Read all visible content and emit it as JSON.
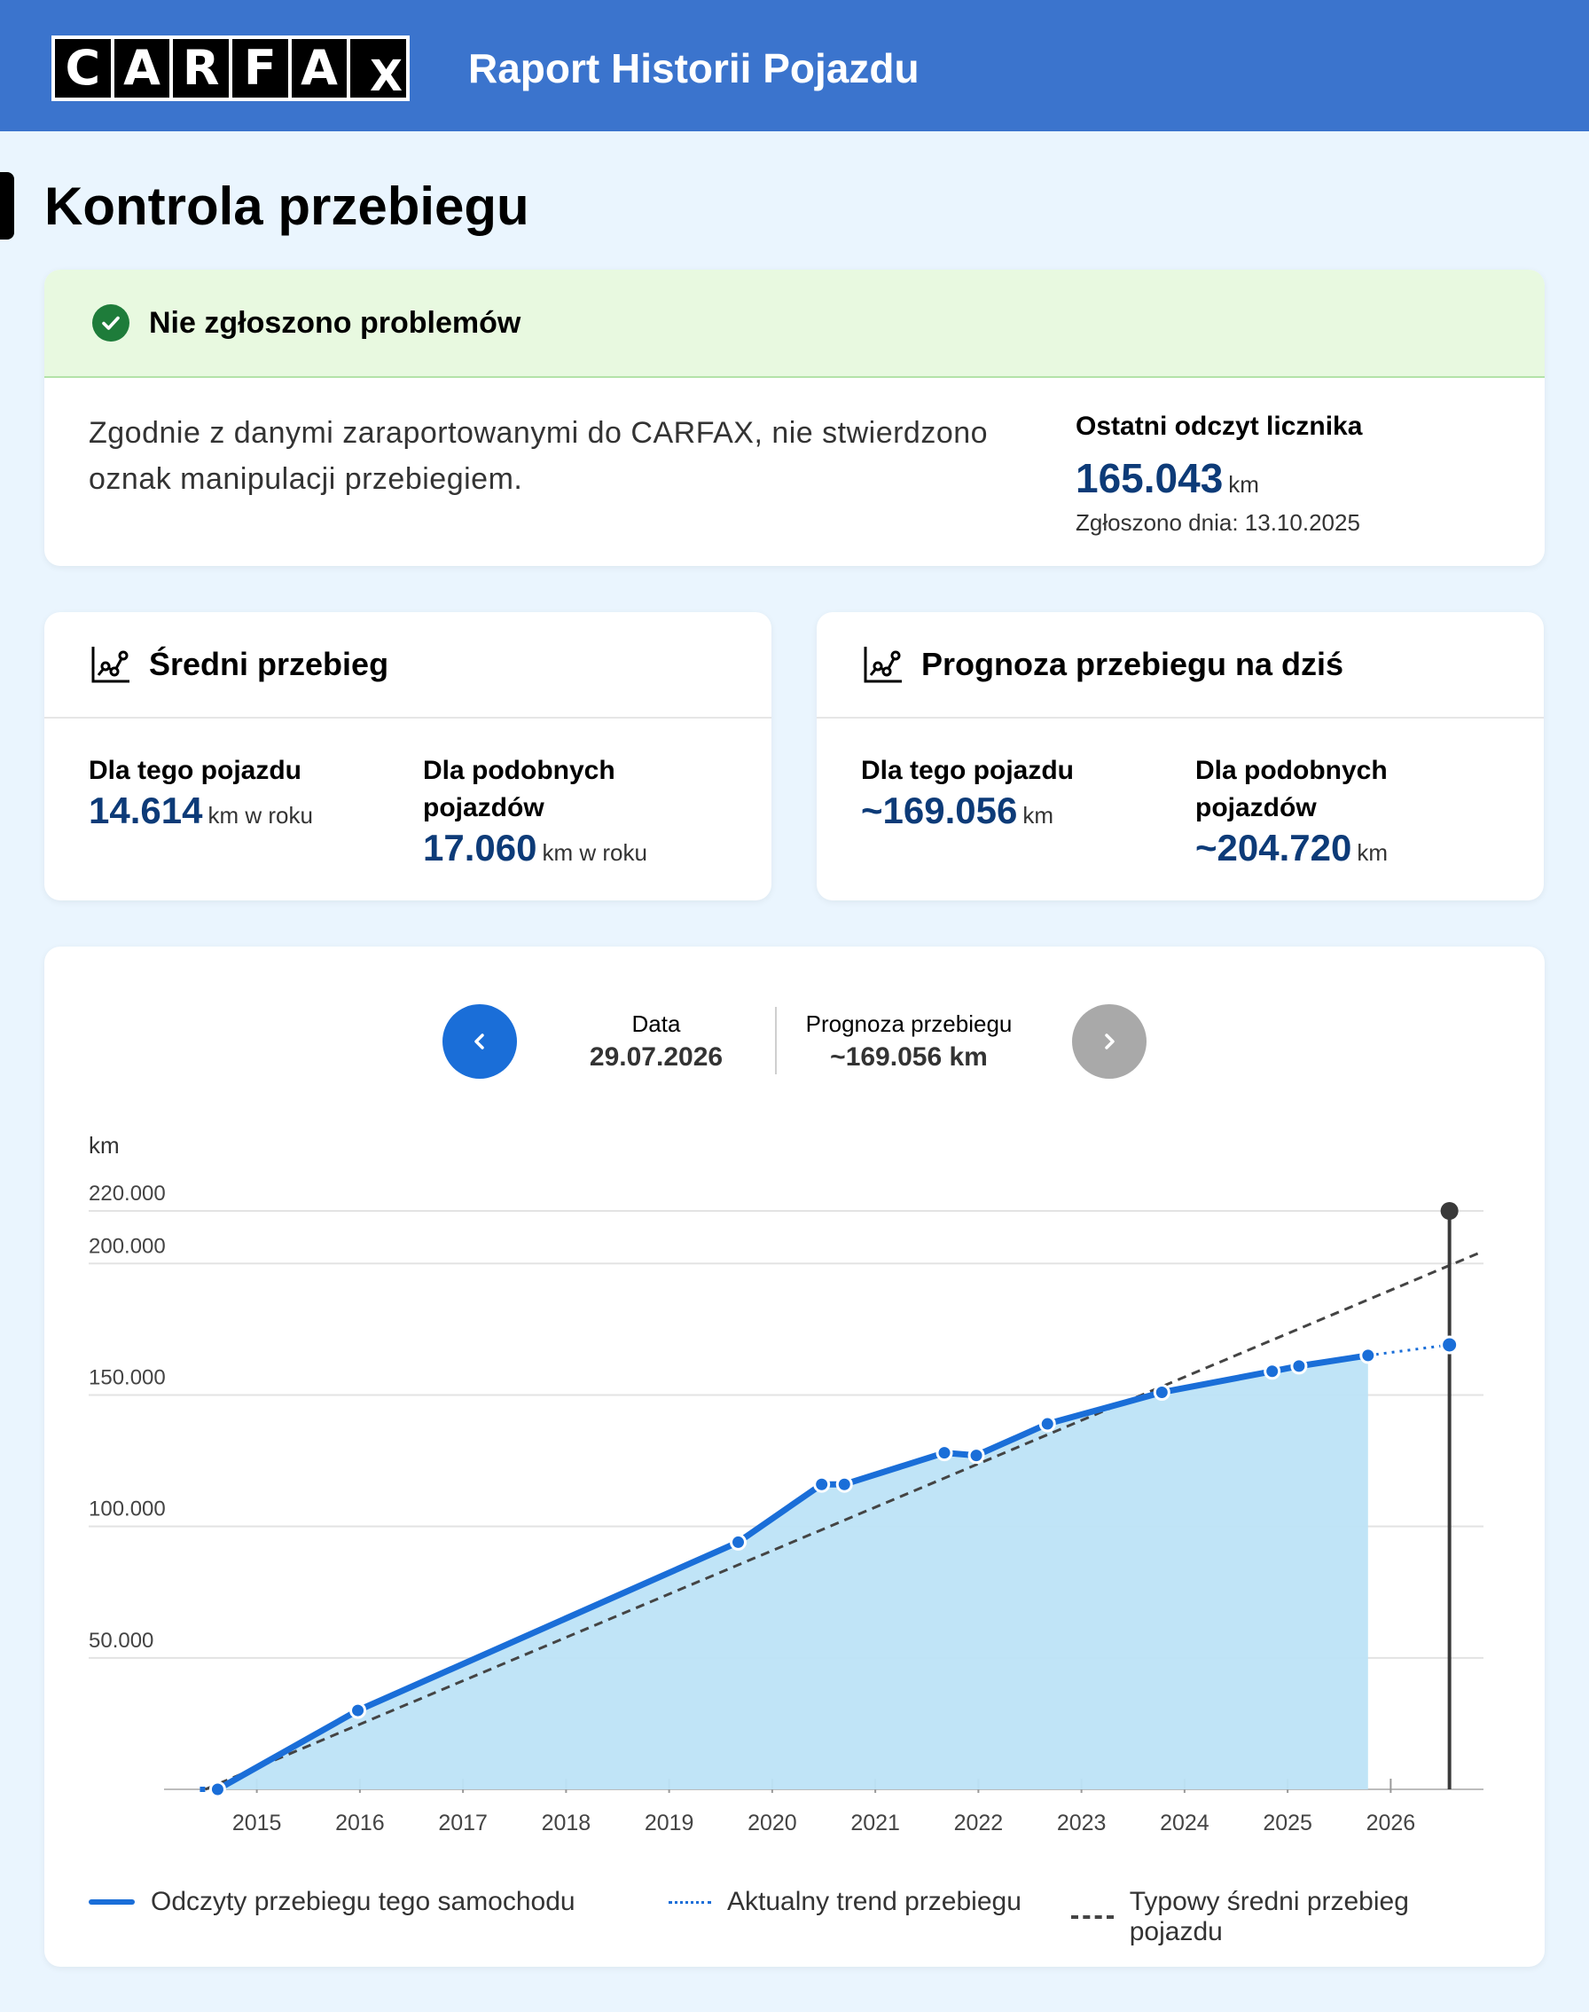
{
  "header": {
    "logo_letters": [
      "C",
      "A",
      "R",
      "F",
      "A",
      "X"
    ],
    "title": "Raport Historii Pojazdu"
  },
  "page": {
    "title": "Kontrola przebiegu"
  },
  "status": {
    "title": "Nie zgłoszono problemów",
    "text": "Zgodnie z danymi zaraportowanymi do CARFAX, nie stwierdzono oznak manipulacji przebiegiem.",
    "odometer_label": "Ostatni odczyt licznika",
    "odometer_value": "165.043",
    "odometer_unit": "km",
    "reported": "Zgłoszono dnia: 13.10.2025"
  },
  "avg_card": {
    "title": "Średni przebieg",
    "this_label": "Dla tego pojazdu",
    "this_value": "14.614",
    "this_unit": "km w roku",
    "similar_label_1": "Dla podobnych",
    "similar_label_2": "pojazdów",
    "similar_value": "17.060",
    "similar_unit": "km w roku"
  },
  "forecast_card": {
    "title": "Prognoza przebiegu na dziś",
    "this_label": "Dla tego pojazdu",
    "this_value": "~169.056",
    "this_unit": "km",
    "similar_label_1": "Dla podobnych",
    "similar_label_2": "pojazdów",
    "similar_value": "~204.720",
    "similar_unit": "km"
  },
  "chart_nav": {
    "date_label": "Data",
    "date_value": "29.07.2026",
    "forecast_label": "Prognoza przebiegu",
    "forecast_value": "~169.056 km"
  },
  "legend": {
    "readings": "Odczyty przebiegu tego samochodu",
    "trend": "Aktualny trend przebiegu",
    "typical": "Typowy średni przebieg pojazdu"
  },
  "colors": {
    "header_bg": "#3b74cd",
    "series_line": "#1a6ed8",
    "area_fill": "#bde3f7",
    "typical_line": "#444444",
    "value_text": "#0d3b78"
  },
  "chart_data": {
    "type": "area",
    "ylabel": "km",
    "ylim": [
      0,
      220000
    ],
    "y_ticks": [
      50000,
      100000,
      150000,
      200000,
      220000
    ],
    "y_tick_labels": [
      "50.000",
      "100.000",
      "150.000",
      "200.000",
      "220.000"
    ],
    "x_tick_labels": [
      "2015",
      "2016",
      "2017",
      "2018",
      "2019",
      "2020",
      "2021",
      "2022",
      "2023",
      "2024",
      "2025",
      "2026"
    ],
    "x_ticks": [
      2015,
      2016,
      2017,
      2018,
      2019,
      2020,
      2021,
      2022,
      2023,
      2024,
      2025,
      2026
    ],
    "xlim": [
      2014.1,
      2026.9
    ],
    "grid": true,
    "legend_position": "bottom",
    "series": [
      {
        "name": "Odczyty przebiegu tego samochodu",
        "style": "solid",
        "points": [
          [
            2014.62,
            0
          ],
          [
            2015.98,
            30000
          ],
          [
            2019.67,
            94000
          ],
          [
            2020.48,
            116000
          ],
          [
            2020.7,
            116000
          ],
          [
            2021.67,
            128000
          ],
          [
            2021.98,
            127000
          ],
          [
            2022.67,
            139000
          ],
          [
            2023.78,
            151000
          ],
          [
            2024.85,
            159000
          ],
          [
            2025.11,
            161000
          ],
          [
            2025.78,
            165043
          ]
        ]
      },
      {
        "name": "Aktualny trend przebiegu",
        "style": "dotted",
        "points": [
          [
            2025.78,
            165043
          ],
          [
            2026.57,
            169056
          ]
        ]
      },
      {
        "name": "Typowy średni przebieg pojazdu",
        "style": "dashed",
        "points": [
          [
            2014.5,
            0
          ],
          [
            2026.9,
            204720
          ]
        ]
      }
    ],
    "marker": {
      "x": 2026.57,
      "value": 169056,
      "top": 220000
    }
  }
}
